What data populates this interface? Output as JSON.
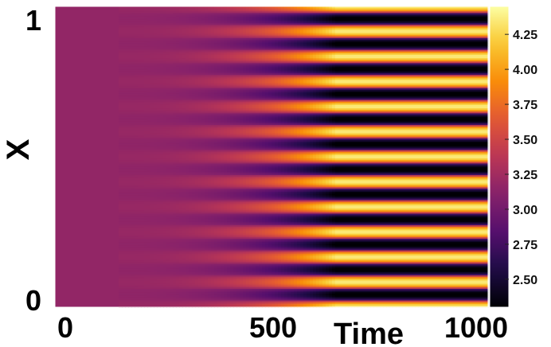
{
  "chart_data": {
    "type": "heatmap",
    "title": "",
    "xlabel": "Time",
    "ylabel": "X",
    "x_ticks": [
      "0",
      "500",
      "1000"
    ],
    "y_ticks": [
      "0",
      "1"
    ],
    "xlim": [
      0,
      1000
    ],
    "ylim": [
      0,
      1
    ],
    "colormap": "inferno",
    "colorbar": {
      "min": 2.3,
      "max": 4.45,
      "ticks": [
        "2.50",
        "2.75",
        "3.00",
        "3.25",
        "3.50",
        "3.75",
        "4.00",
        "4.25"
      ]
    },
    "baseline_value": 3.17,
    "stripe_count": 12,
    "onset_time": 300,
    "saturation_time": 650,
    "max_amplitude": 1.25,
    "grid": false,
    "legend": "colorbar-right"
  }
}
